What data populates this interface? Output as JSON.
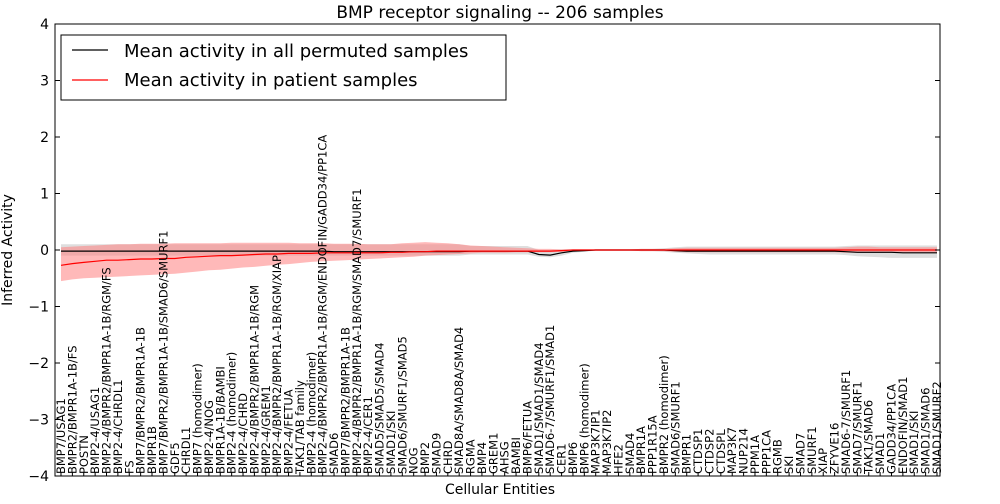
{
  "chart_data": {
    "type": "line",
    "title": "BMP receptor signaling -- 206 samples",
    "xlabel": "Cellular Entities",
    "ylabel": "Inferred Activity",
    "ylim": [
      -4,
      4
    ],
    "yticks": [
      -4,
      -3,
      -2,
      -1,
      0,
      1,
      2,
      3,
      4
    ],
    "grid": false,
    "legend_position": "top-left",
    "colors": {
      "permuted": "#000000",
      "patient": "#ff0000",
      "patient_band": "#ff8080",
      "permuted_band": "#c8c8c8"
    },
    "categories": [
      "BMP7/USAG1",
      "BMPR2/BMPR1A-1B/FS",
      "POSTN",
      "BMP2-4/USAG1",
      "BMP2-4/BMPR2/BMPR1A-1B/RGM/FS",
      "BMP2-4/CHRDL1",
      "FS",
      "BMP7/BMPR2/BMPR1A-1B",
      "BMPR1B",
      "BMP7/BMPR2/BMPR1A-1B/SMAD6/SMURF1",
      "GDF5",
      "CHRDL1",
      "BMP7 (homodimer)",
      "BMP2-4/NOG",
      "BMPR1A-1B/BAMBI",
      "BMP2-4 (homodimer)",
      "BMP2-4/CHRD",
      "BMP2-4/BMPR2/BMPR1A-1B/RGM",
      "BMP2-4/GREM1",
      "BMP2-4/BMPR2/BMPR1A-1B/RGM/XIAP",
      "BMP2-4/FETUA",
      "TAK1/TAB family",
      "BMP2-4 (homodimer)",
      "BMP2-4/BMPR2/BMPR1A-1B/RGM/ENDOFIN/GADD34/PP1CA",
      "SMAD6",
      "BMP7/BMPR2/BMPR1A-1B",
      "BMP2-4/BMPR2/BMPR1A-1B/RGM/SMAD7/SMURF1",
      "BMP2-4/CER1",
      "SMAD5/SMAD5/SMAD4",
      "SMAD1/SKI",
      "SMAD6/SMURF1/SMAD5",
      "NOG",
      "BMP2",
      "SMAD9",
      "CHRD",
      "SMAD8A/SMAD8A/SMAD4",
      "RGMA",
      "BMP4",
      "GREM1",
      "AHSG",
      "BAMBI",
      "BMP6/FETUA",
      "SMAD1/SMAD1/SMAD4",
      "SMAD6-7/SMURF1/SMAD1",
      "CER1",
      "BMP6",
      "BMP6 (homodimer)",
      "MAP3K7IP1",
      "MAP3K7IP2",
      "HFE2",
      "SMAD4",
      "BMPR1A",
      "PPP1R15A",
      "BMPR2 (homodimer)",
      "SMAD6/SMURF1",
      "BMPR1",
      "CTDSP1",
      "CTDSP2",
      "CTDSPL",
      "MAP3K7",
      "NUP214",
      "PPM1A",
      "PPP1CA",
      "RGMB",
      "SKI",
      "SMAD7",
      "SMURF1",
      "XIAP",
      "ZFYVE16",
      "SMAD6-7/SMURF1",
      "SMAD7/SMURF1",
      "TAK1/SMAD6",
      "SMAD1",
      "GADD34/PP1CA",
      "ENDOFIN/SMAD1",
      "SMAD1/SKI",
      "SMAD1/SMAD6",
      "SMAD1/SMURF2"
    ],
    "series": [
      {
        "name": "Mean activity in all permuted samples",
        "values": [
          -0.02,
          -0.02,
          -0.02,
          -0.02,
          -0.02,
          -0.02,
          -0.02,
          -0.02,
          -0.02,
          -0.02,
          -0.02,
          -0.02,
          -0.02,
          -0.02,
          -0.02,
          -0.02,
          -0.02,
          -0.02,
          -0.02,
          -0.02,
          -0.02,
          -0.02,
          -0.02,
          -0.02,
          -0.03,
          -0.03,
          -0.03,
          -0.03,
          -0.03,
          -0.03,
          -0.03,
          -0.03,
          -0.03,
          -0.03,
          -0.03,
          -0.03,
          -0.02,
          -0.02,
          -0.02,
          -0.02,
          -0.02,
          -0.02,
          -0.08,
          -0.09,
          -0.05,
          -0.02,
          -0.01,
          0.0,
          0.0,
          0.0,
          0.0,
          0.0,
          0.0,
          0.0,
          -0.01,
          -0.02,
          -0.02,
          -0.02,
          -0.02,
          -0.02,
          -0.02,
          -0.02,
          -0.02,
          -0.02,
          -0.02,
          -0.02,
          -0.02,
          -0.02,
          -0.02,
          -0.03,
          -0.04,
          -0.04,
          -0.04,
          -0.04,
          -0.05,
          -0.05,
          -0.05,
          -0.05
        ],
        "band_low": [
          -0.1,
          -0.1,
          -0.1,
          -0.1,
          -0.1,
          -0.1,
          -0.1,
          -0.1,
          -0.1,
          -0.1,
          -0.1,
          -0.1,
          -0.1,
          -0.1,
          -0.1,
          -0.1,
          -0.1,
          -0.1,
          -0.1,
          -0.1,
          -0.1,
          -0.1,
          -0.1,
          -0.1,
          -0.1,
          -0.1,
          -0.1,
          -0.1,
          -0.1,
          -0.1,
          -0.1,
          -0.1,
          -0.1,
          -0.1,
          -0.1,
          -0.1,
          -0.08,
          -0.08,
          -0.08,
          -0.08,
          -0.08,
          -0.08,
          -0.12,
          -0.13,
          -0.1,
          -0.05,
          -0.03,
          -0.01,
          -0.01,
          -0.01,
          -0.01,
          -0.02,
          -0.02,
          -0.03,
          -0.05,
          -0.06,
          -0.07,
          -0.08,
          -0.08,
          -0.08,
          -0.08,
          -0.08,
          -0.08,
          -0.08,
          -0.08,
          -0.08,
          -0.08,
          -0.08,
          -0.08,
          -0.09,
          -0.11,
          -0.12,
          -0.13,
          -0.14,
          -0.14,
          -0.14,
          -0.14,
          -0.14
        ],
        "band_high": [
          0.1,
          0.1,
          0.1,
          0.1,
          0.1,
          0.1,
          0.1,
          0.1,
          0.1,
          0.1,
          0.1,
          0.1,
          0.1,
          0.1,
          0.1,
          0.1,
          0.1,
          0.1,
          0.1,
          0.1,
          0.1,
          0.1,
          0.1,
          0.1,
          0.1,
          0.1,
          0.1,
          0.1,
          0.1,
          0.1,
          0.1,
          0.1,
          0.1,
          0.1,
          0.1,
          0.1,
          0.07,
          0.07,
          0.07,
          0.07,
          0.07,
          0.07,
          0.0,
          0.0,
          0.01,
          0.01,
          0.01,
          0.01,
          0.01,
          0.01,
          0.01,
          0.02,
          0.02,
          0.03,
          0.05,
          0.06,
          0.06,
          0.06,
          0.06,
          0.06,
          0.06,
          0.06,
          0.06,
          0.06,
          0.06,
          0.06,
          0.06,
          0.06,
          0.06,
          0.07,
          0.08,
          0.08,
          0.08,
          0.08,
          0.08,
          0.08,
          0.08,
          0.08
        ]
      },
      {
        "name": "Mean activity in patient samples",
        "values": [
          -0.27,
          -0.24,
          -0.22,
          -0.2,
          -0.18,
          -0.18,
          -0.17,
          -0.16,
          -0.16,
          -0.15,
          -0.15,
          -0.13,
          -0.12,
          -0.11,
          -0.1,
          -0.1,
          -0.09,
          -0.08,
          -0.07,
          -0.07,
          -0.06,
          -0.06,
          -0.06,
          -0.05,
          -0.05,
          -0.05,
          -0.05,
          -0.05,
          -0.05,
          -0.04,
          -0.04,
          -0.03,
          -0.03,
          -0.02,
          -0.02,
          -0.02,
          -0.02,
          -0.02,
          -0.02,
          -0.02,
          -0.02,
          -0.02,
          -0.02,
          -0.02,
          -0.01,
          0.0,
          0.0,
          0.0,
          0.0,
          0.0,
          0.0,
          0.0,
          0.0,
          0.0,
          0.0,
          0.0,
          0.0,
          0.0,
          0.0,
          0.0,
          0.0,
          0.0,
          0.0,
          0.0,
          0.0,
          0.0,
          0.0,
          0.0,
          0.0,
          0.0,
          0.0,
          0.0,
          0.0,
          0.0,
          0.0,
          0.0,
          0.0,
          0.0
        ],
        "band_low": [
          -0.55,
          -0.52,
          -0.5,
          -0.49,
          -0.48,
          -0.47,
          -0.46,
          -0.45,
          -0.44,
          -0.43,
          -0.42,
          -0.4,
          -0.38,
          -0.36,
          -0.35,
          -0.33,
          -0.31,
          -0.3,
          -0.28,
          -0.26,
          -0.25,
          -0.23,
          -0.21,
          -0.2,
          -0.19,
          -0.18,
          -0.17,
          -0.16,
          -0.15,
          -0.14,
          -0.13,
          -0.12,
          -0.1,
          -0.09,
          -0.08,
          -0.07,
          -0.06,
          -0.05,
          -0.05,
          -0.05,
          -0.04,
          -0.04,
          -0.04,
          -0.04,
          -0.03,
          -0.02,
          -0.01,
          -0.01,
          -0.01,
          -0.01,
          -0.01,
          -0.02,
          -0.02,
          -0.02,
          -0.03,
          -0.04,
          -0.04,
          -0.04,
          -0.04,
          -0.04,
          -0.04,
          -0.04,
          -0.04,
          -0.04,
          -0.04,
          -0.04,
          -0.04,
          -0.04,
          -0.04,
          -0.05,
          -0.05,
          -0.05,
          -0.05,
          -0.05,
          -0.05,
          -0.05,
          -0.05,
          -0.05
        ],
        "band_high": [
          0.05,
          0.06,
          0.07,
          0.08,
          0.09,
          0.1,
          0.1,
          0.11,
          0.11,
          0.11,
          0.12,
          0.12,
          0.12,
          0.12,
          0.12,
          0.13,
          0.13,
          0.13,
          0.13,
          0.13,
          0.13,
          0.12,
          0.12,
          0.12,
          0.11,
          0.11,
          0.11,
          0.1,
          0.1,
          0.1,
          0.12,
          0.13,
          0.14,
          0.13,
          0.12,
          0.1,
          0.08,
          0.07,
          0.06,
          0.05,
          0.04,
          0.03,
          0.02,
          0.02,
          0.01,
          0.01,
          0.01,
          0.01,
          0.01,
          0.01,
          0.01,
          0.02,
          0.02,
          0.02,
          0.03,
          0.04,
          0.04,
          0.04,
          0.04,
          0.04,
          0.04,
          0.04,
          0.04,
          0.04,
          0.04,
          0.04,
          0.04,
          0.04,
          0.04,
          0.05,
          0.06,
          0.06,
          0.05,
          0.05,
          0.05,
          0.05,
          0.05,
          0.05
        ]
      }
    ]
  }
}
